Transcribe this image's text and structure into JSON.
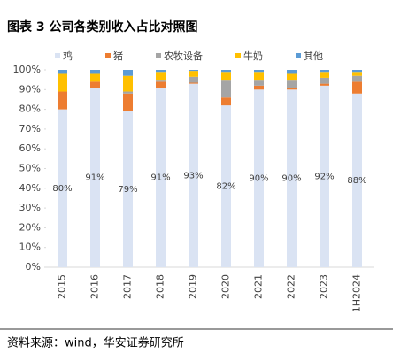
{
  "chart_data": {
    "type": "stacked_bar",
    "title": "图表 3 公司各类别收入占比对照图",
    "source": "资料来源：wind，华安证券研究所",
    "categories": [
      "2015",
      "2016",
      "2017",
      "2018",
      "2019",
      "2020",
      "2021",
      "2022",
      "2023",
      "1H2024"
    ],
    "series": [
      {
        "name": "鸡",
        "color": "#dae3f3",
        "values": [
          80,
          91,
          79,
          91,
          93,
          82,
          90,
          90,
          92,
          88
        ],
        "value_labels": [
          "80%",
          "91%",
          "79%",
          "91%",
          "93%",
          "82%",
          "90%",
          "90%",
          "92%",
          "88%"
        ]
      },
      {
        "name": "猪",
        "color": "#ed7d31",
        "values": [
          9,
          3,
          9,
          3,
          0.5,
          4,
          2,
          1,
          1,
          6
        ]
      },
      {
        "name": "农牧设备",
        "color": "#a5a5a5",
        "values": [
          0,
          0,
          1,
          1,
          3,
          9,
          3,
          4,
          3,
          3
        ]
      },
      {
        "name": "牛奶",
        "color": "#ffc000",
        "values": [
          9,
          4,
          8,
          4,
          3,
          4,
          4,
          3,
          3,
          2
        ]
      },
      {
        "name": "其他",
        "color": "#5b9bd5",
        "values": [
          2,
          2,
          3,
          1,
          0.5,
          1,
          1,
          2,
          1,
          1
        ]
      }
    ],
    "ylim": [
      0,
      100
    ],
    "yticks": [
      {
        "value": 0,
        "label": "0%"
      },
      {
        "value": 10,
        "label": "10%"
      },
      {
        "value": 20,
        "label": "20%"
      },
      {
        "value": 30,
        "label": "30%"
      },
      {
        "value": 40,
        "label": "40%"
      },
      {
        "value": 50,
        "label": "50%"
      },
      {
        "value": 60,
        "label": "60%"
      },
      {
        "value": 70,
        "label": "70%"
      },
      {
        "value": 80,
        "label": "80%"
      },
      {
        "value": 90,
        "label": "90%"
      },
      {
        "value": 100,
        "label": "100%"
      }
    ],
    "grid": false,
    "legend": "top"
  }
}
